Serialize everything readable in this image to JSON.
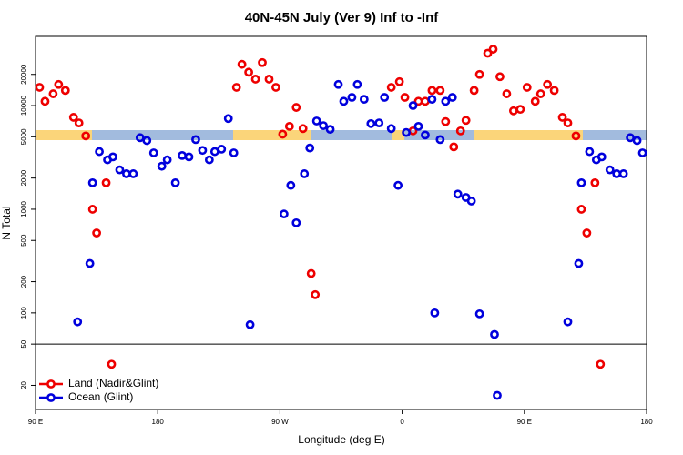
{
  "chart_data": {
    "type": "scatter",
    "title": "40N-45N July (Ver 9)   Inf to -Inf",
    "x_label": "Longitude (deg E)",
    "y_label": "N Total",
    "log_y": true,
    "legend": "lower left",
    "hline": 50,
    "xlim": [
      90,
      540
    ],
    "xticks": [
      {
        "value": 90,
        "label": "90 E"
      },
      180,
      {
        "value": 270,
        "label": "90 W"
      },
      {
        "value": 360,
        "label": "0"
      },
      {
        "value": 450,
        "label": "90 E"
      },
      {
        "value": 540,
        "label": "180"
      }
    ],
    "ylim": [
      11.7,
      46500
    ],
    "yticks": [
      20,
      50,
      100,
      200,
      500,
      1000,
      2000,
      5000,
      10000,
      20000
    ],
    "series": [
      {
        "name": "Land (Nadir&Glint)",
        "color": "#ee0000",
        "x": [
          93,
          97,
          103,
          107,
          112,
          118,
          122,
          127,
          132,
          135,
          142,
          146,
          238,
          242,
          247,
          252,
          257,
          262,
          267,
          272,
          277,
          282,
          287,
          293,
          296,
          352,
          358,
          362,
          368,
          372,
          377,
          382,
          388,
          392,
          398,
          403,
          407,
          413,
          417,
          423,
          427,
          432,
          437,
          442,
          447,
          452,
          458,
          462,
          467,
          472,
          478,
          482,
          488,
          492,
          496,
          502,
          506
        ],
        "values": [
          15000,
          11000,
          13000,
          16000,
          14000,
          7700,
          6800,
          5100,
          1000,
          590,
          1800,
          32,
          15000,
          25000,
          21000,
          18000,
          26000,
          18000,
          15000,
          5300,
          6300,
          9600,
          6000,
          240,
          150,
          15000,
          17000,
          12000,
          5700,
          11000,
          11000,
          14000,
          14000,
          7000,
          4000,
          5700,
          7200,
          14000,
          20000,
          32000,
          35000,
          19000,
          13000,
          8900,
          9200,
          15000,
          11000,
          13000,
          16000,
          14000,
          7700,
          6800,
          5100,
          1000,
          590,
          1800,
          32
        ]
      },
      {
        "name": "Ocean (Glint)",
        "color": "#0000dd",
        "x": [
          121,
          130,
          132,
          137,
          143,
          147,
          152,
          157,
          162,
          167,
          172,
          177,
          183,
          187,
          193,
          198,
          203,
          208,
          213,
          218,
          222,
          227,
          232,
          236,
          248,
          273,
          278,
          282,
          288,
          292,
          297,
          302,
          307,
          313,
          317,
          323,
          327,
          332,
          337,
          343,
          347,
          352,
          357,
          363,
          368,
          372,
          377,
          382,
          384,
          388,
          392,
          397,
          401,
          407,
          411,
          417,
          428,
          430,
          482,
          490,
          492,
          498,
          503,
          507,
          513,
          518,
          523,
          528,
          533,
          537
        ],
        "values": [
          82,
          300,
          1800,
          3600,
          3000,
          3200,
          2400,
          2200,
          2200,
          4900,
          4600,
          3500,
          2600,
          3000,
          1800,
          3300,
          3200,
          4700,
          3700,
          3000,
          3600,
          3800,
          7500,
          3500,
          77,
          900,
          1700,
          740,
          2200,
          3900,
          7100,
          6400,
          5900,
          16000,
          11000,
          12000,
          16000,
          11500,
          6700,
          6800,
          12000,
          6000,
          1700,
          5500,
          10000,
          6300,
          5200,
          11500,
          100,
          4700,
          11000,
          12000,
          1400,
          1300,
          1200,
          98,
          62,
          16,
          82,
          300,
          1800,
          3600,
          3000,
          3200,
          2400,
          2200,
          2200,
          4900,
          4600,
          3500
        ]
      }
    ]
  }
}
